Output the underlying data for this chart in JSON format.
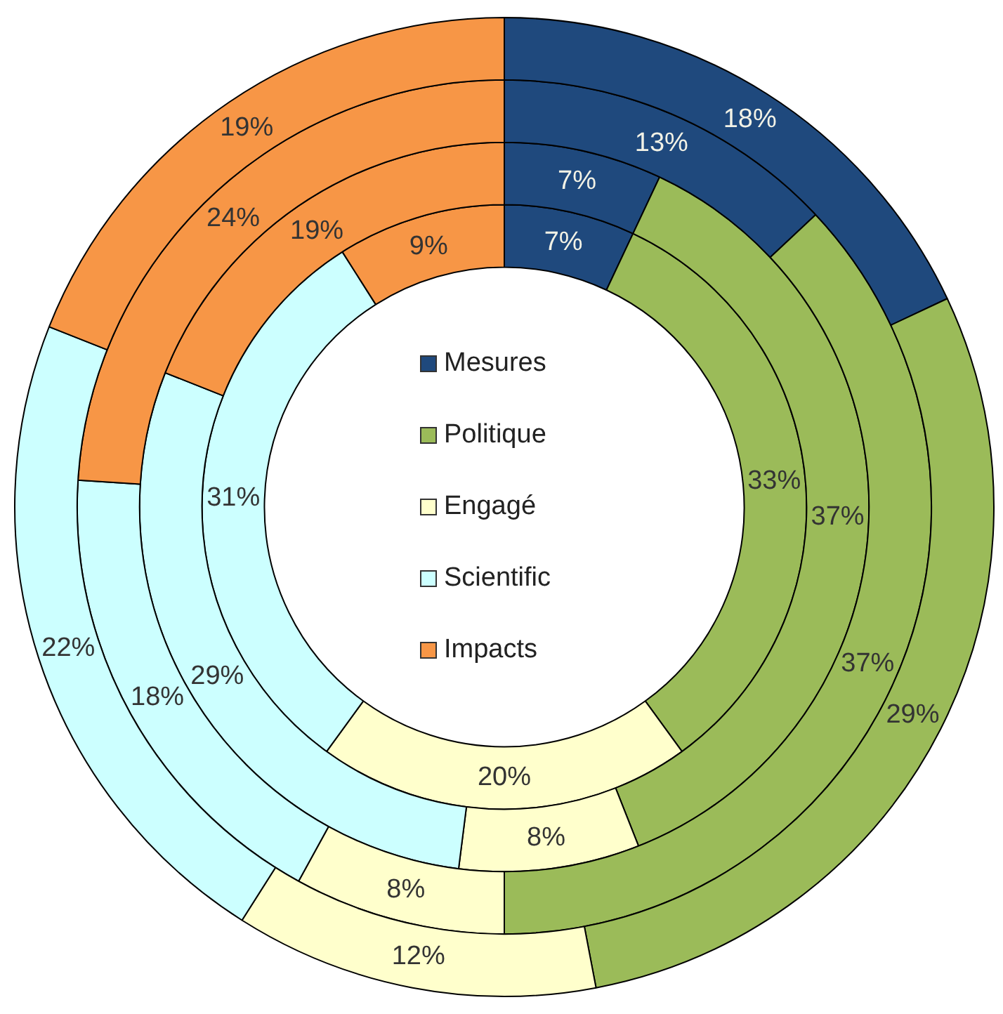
{
  "chart_data": {
    "type": "donut",
    "categories": [
      "Mesures",
      "Politique",
      "Engagé",
      "Scientific",
      "Impacts"
    ],
    "colors": [
      "#1f497d",
      "#9bbb59",
      "#ffffcc",
      "#ccffff",
      "#f79646"
    ],
    "series": [
      {
        "values": [
          7,
          33,
          20,
          31,
          9
        ],
        "value_labels": [
          "7%",
          "33%",
          "20%",
          "31%",
          "9%"
        ]
      },
      {
        "values": [
          7,
          37,
          8,
          29,
          19
        ],
        "value_labels": [
          "7%",
          "37%",
          "8%",
          "29%",
          "19%"
        ]
      },
      {
        "values": [
          13,
          37,
          8,
          18,
          24
        ],
        "value_labels": [
          "13%",
          "37%",
          "8%",
          "18%",
          "24%"
        ]
      },
      {
        "values": [
          18,
          29,
          12,
          22,
          19
        ],
        "value_labels": [
          "18%",
          "29%",
          "12%",
          "22%",
          "19%"
        ]
      }
    ],
    "legend": "center"
  }
}
